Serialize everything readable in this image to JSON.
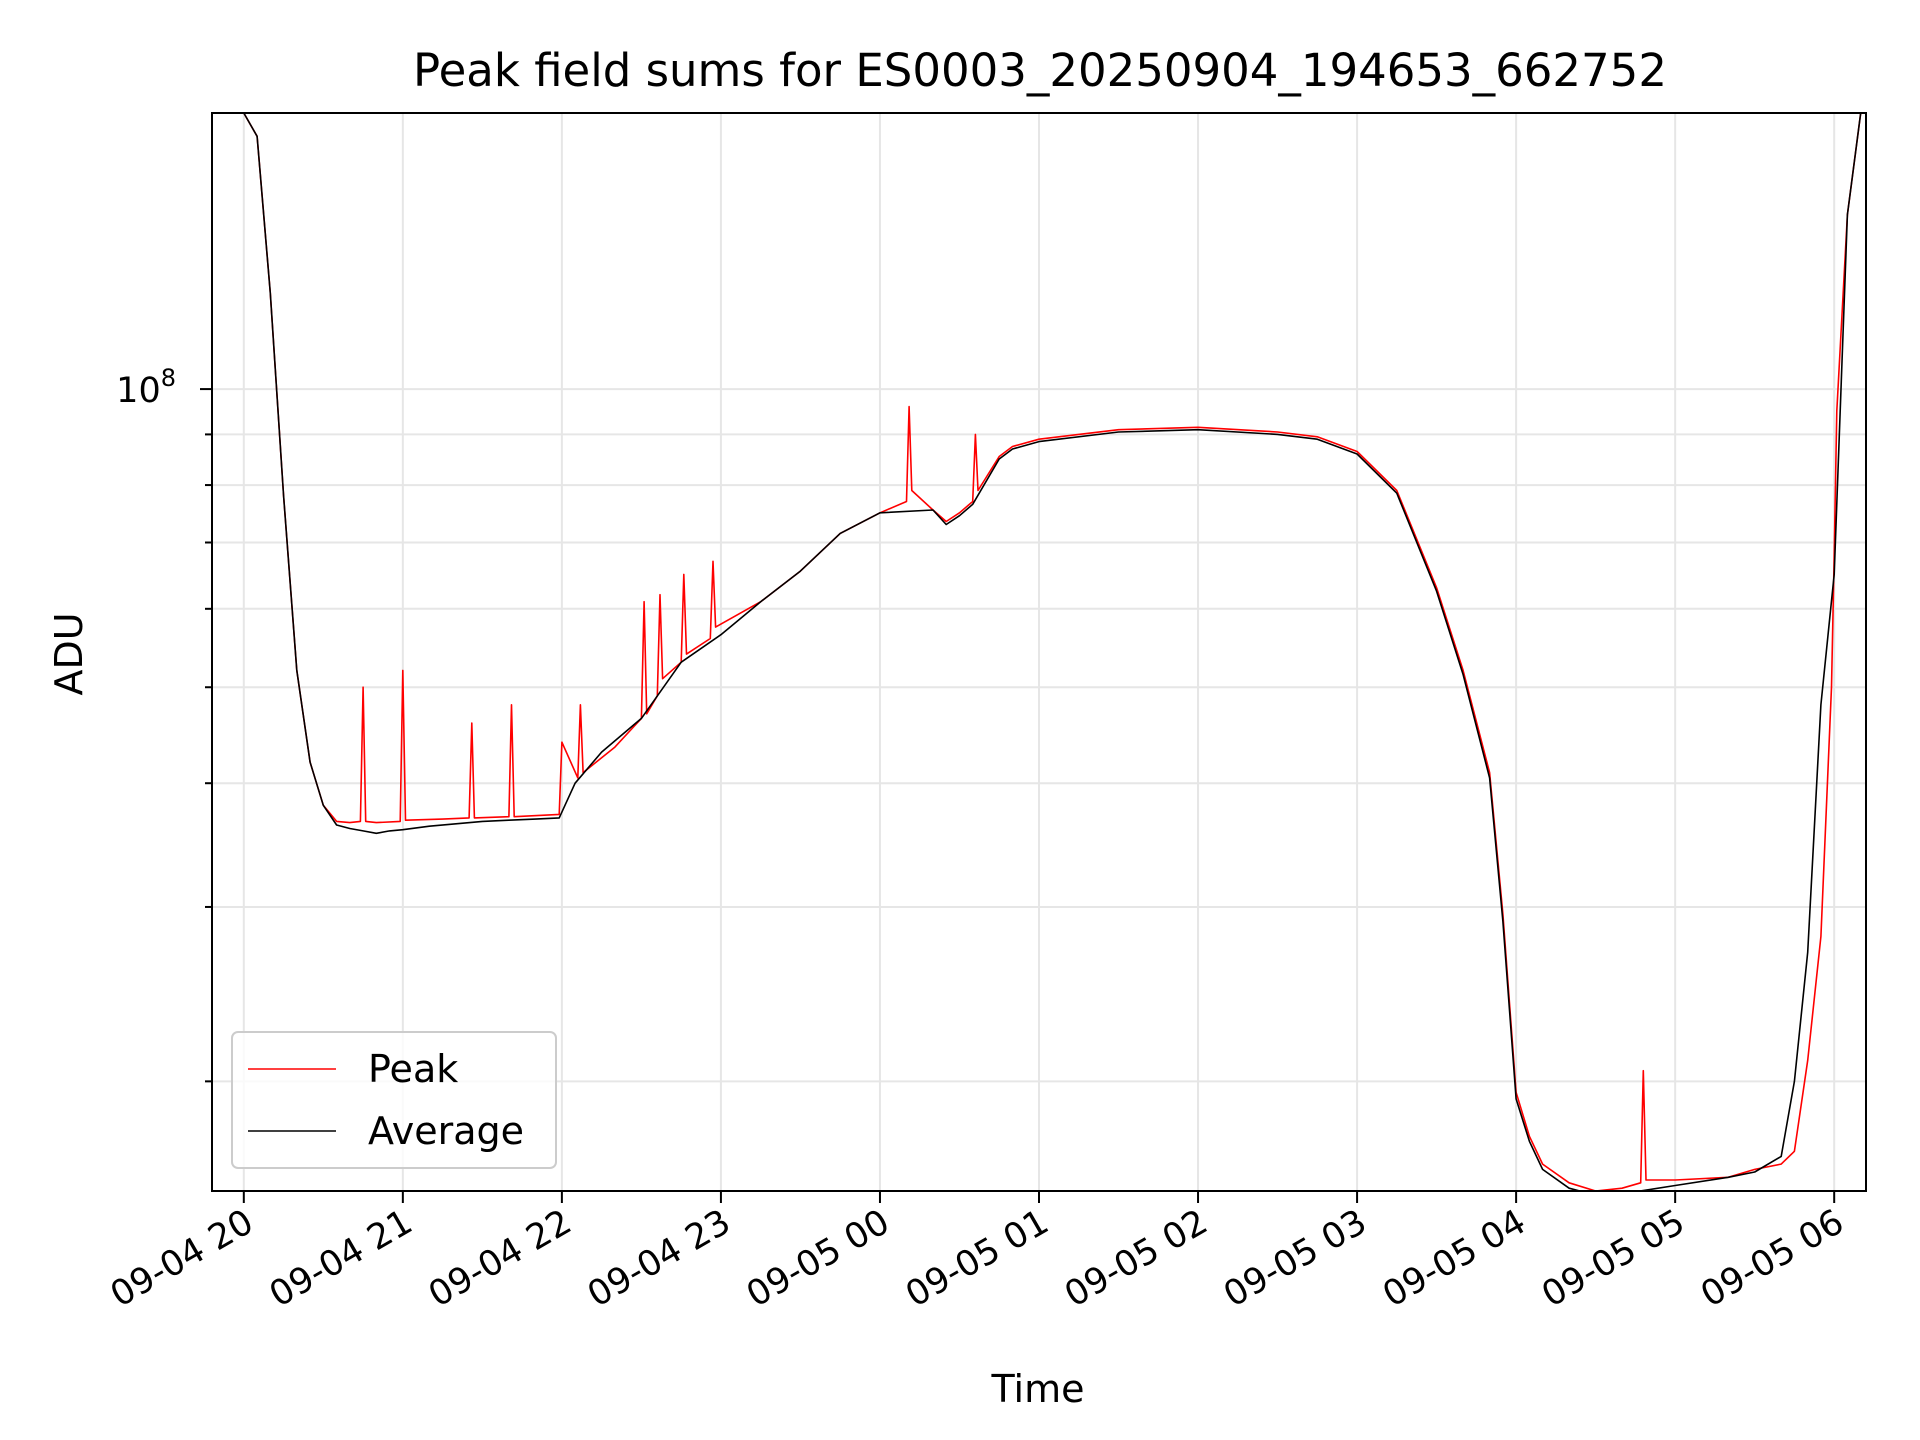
{
  "chart_data": {
    "type": "line",
    "title": "Peak field sums for ES0003_20250904_194653_662752",
    "xlabel": "Time",
    "ylabel": "ADU",
    "y_scale": "log",
    "grid": true,
    "legend_position": "lower-left",
    "x_ticks": [
      "09-04 20",
      "09-04 21",
      "09-04 22",
      "09-04 23",
      "09-05 00",
      "09-05 01",
      "09-05 02",
      "09-05 03",
      "09-05 04",
      "09-05 05",
      "09-05 06"
    ],
    "x_tick_times": [
      "2025-09-04T20:00",
      "2025-09-04T21:00",
      "2025-09-04T22:00",
      "2025-09-04T23:00",
      "2025-09-05T00:00",
      "2025-09-05T01:00",
      "2025-09-05T02:00",
      "2025-09-05T03:00",
      "2025-09-05T04:00",
      "2025-09-05T05:00",
      "2025-09-05T06:00"
    ],
    "xlim": [
      "2025-09-04T19:48",
      "2025-09-05T06:12"
    ],
    "ylim": [
      15500000,
      190000000
    ],
    "y_major_tick": {
      "value": 100000000,
      "base": "10",
      "exponent": "8"
    },
    "y_minor_ticks": [
      20000000,
      30000000,
      40000000,
      50000000,
      60000000,
      70000000,
      80000000,
      90000000,
      200000000
    ],
    "series": [
      {
        "name": "Peak",
        "color": "#ff0000",
        "x": [
          "2025-09-04T20:00",
          "2025-09-04T20:05",
          "2025-09-04T20:10",
          "2025-09-04T20:15",
          "2025-09-04T20:20",
          "2025-09-04T20:25",
          "2025-09-04T20:30",
          "2025-09-04T20:35",
          "2025-09-04T20:40",
          "2025-09-04T20:44",
          "2025-09-04T20:45",
          "2025-09-04T20:46",
          "2025-09-04T20:50",
          "2025-09-04T20:59",
          "2025-09-04T21:00",
          "2025-09-04T21:01",
          "2025-09-04T21:15",
          "2025-09-04T21:25",
          "2025-09-04T21:26",
          "2025-09-04T21:27",
          "2025-09-04T21:40",
          "2025-09-04T21:41",
          "2025-09-04T21:42",
          "2025-09-04T21:59",
          "2025-09-04T22:00",
          "2025-09-04T22:06",
          "2025-09-04T22:07",
          "2025-09-04T22:08",
          "2025-09-04T22:20",
          "2025-09-04T22:30",
          "2025-09-04T22:31",
          "2025-09-04T22:32",
          "2025-09-04T22:36",
          "2025-09-04T22:37",
          "2025-09-04T22:38",
          "2025-09-04T22:45",
          "2025-09-04T22:46",
          "2025-09-04T22:47",
          "2025-09-04T22:56",
          "2025-09-04T22:57",
          "2025-09-04T22:58",
          "2025-09-04T23:15",
          "2025-09-04T23:30",
          "2025-09-04T23:45",
          "2025-09-05T00:00",
          "2025-09-05T00:10",
          "2025-09-05T00:11",
          "2025-09-05T00:12",
          "2025-09-05T00:20",
          "2025-09-05T00:25",
          "2025-09-05T00:30",
          "2025-09-05T00:35",
          "2025-09-05T00:36",
          "2025-09-05T00:37",
          "2025-09-05T00:45",
          "2025-09-05T00:50",
          "2025-09-05T01:00",
          "2025-09-05T01:30",
          "2025-09-05T02:00",
          "2025-09-05T02:30",
          "2025-09-05T02:45",
          "2025-09-05T03:00",
          "2025-09-05T03:15",
          "2025-09-05T03:30",
          "2025-09-05T03:40",
          "2025-09-05T03:50",
          "2025-09-05T03:55",
          "2025-09-05T04:00",
          "2025-09-05T04:05",
          "2025-09-05T04:10",
          "2025-09-05T04:20",
          "2025-09-05T04:30",
          "2025-09-05T04:40",
          "2025-09-05T04:47",
          "2025-09-05T04:48",
          "2025-09-05T04:49",
          "2025-09-05T05:00",
          "2025-09-05T05:20",
          "2025-09-05T05:30",
          "2025-09-05T05:40",
          "2025-09-05T05:45",
          "2025-09-05T05:50",
          "2025-09-05T05:55",
          "2025-09-05T05:59",
          "2025-09-05T06:00",
          "2025-09-05T06:01",
          "2025-09-05T06:05",
          "2025-09-05T06:10"
        ],
        "values": [
          190000000,
          180000000,
          125000000,
          78000000,
          52000000,
          42000000,
          38000000,
          36600000,
          36500000,
          36600000,
          50000000,
          36600000,
          36500000,
          36600000,
          52000000,
          36700000,
          36800000,
          36900000,
          46000000,
          36900000,
          37000000,
          48000000,
          37000000,
          37200000,
          44000000,
          40500000,
          48000000,
          41000000,
          43500000,
          46500000,
          61000000,
          47000000,
          49000000,
          62000000,
          51000000,
          53000000,
          65000000,
          54000000,
          56000000,
          67000000,
          57500000,
          61000000,
          65500000,
          71500000,
          75000000,
          77000000,
          96000000,
          79000000,
          75500000,
          73500000,
          75000000,
          77000000,
          90000000,
          79000000,
          85500000,
          87500000,
          89000000,
          91000000,
          91500000,
          90500000,
          89500000,
          86500000,
          79000000,
          63000000,
          52000000,
          41000000,
          29500000,
          19500000,
          17600000,
          16500000,
          15800000,
          15500000,
          15600000,
          15800000,
          20500000,
          15900000,
          15900000,
          16000000,
          16300000,
          16500000,
          17000000,
          21000000,
          28000000,
          50000000,
          68000000,
          95000000,
          150000000,
          190000000
        ]
      },
      {
        "name": "Average",
        "color": "#000000",
        "x": [
          "2025-09-04T20:00",
          "2025-09-04T20:05",
          "2025-09-04T20:10",
          "2025-09-04T20:15",
          "2025-09-04T20:20",
          "2025-09-04T20:25",
          "2025-09-04T20:30",
          "2025-09-04T20:35",
          "2025-09-04T20:40",
          "2025-09-04T20:45",
          "2025-09-04T20:50",
          "2025-09-04T20:55",
          "2025-09-04T21:00",
          "2025-09-04T21:10",
          "2025-09-04T21:20",
          "2025-09-04T21:30",
          "2025-09-04T21:40",
          "2025-09-04T21:50",
          "2025-09-04T21:59",
          "2025-09-04T22:05",
          "2025-09-04T22:15",
          "2025-09-04T22:30",
          "2025-09-04T22:45",
          "2025-09-04T23:00",
          "2025-09-04T23:15",
          "2025-09-04T23:30",
          "2025-09-04T23:45",
          "2025-09-05T00:00",
          "2025-09-05T00:20",
          "2025-09-05T00:25",
          "2025-09-05T00:30",
          "2025-09-05T00:35",
          "2025-09-05T00:45",
          "2025-09-05T00:50",
          "2025-09-05T01:00",
          "2025-09-05T01:30",
          "2025-09-05T02:00",
          "2025-09-05T02:30",
          "2025-09-05T02:45",
          "2025-09-05T03:00",
          "2025-09-05T03:15",
          "2025-09-05T03:30",
          "2025-09-05T03:40",
          "2025-09-05T03:50",
          "2025-09-05T03:55",
          "2025-09-05T04:00",
          "2025-09-05T04:05",
          "2025-09-05T04:10",
          "2025-09-05T04:20",
          "2025-09-05T04:30",
          "2025-09-05T04:40",
          "2025-09-05T05:00",
          "2025-09-05T05:20",
          "2025-09-05T05:30",
          "2025-09-05T05:40",
          "2025-09-05T05:45",
          "2025-09-05T05:50",
          "2025-09-05T05:55",
          "2025-09-05T06:00",
          "2025-09-05T06:05",
          "2025-09-05T06:10"
        ],
        "values": [
          190000000,
          180000000,
          125000000,
          78000000,
          52000000,
          42000000,
          38000000,
          36300000,
          36000000,
          35800000,
          35600000,
          35800000,
          35900000,
          36200000,
          36400000,
          36600000,
          36700000,
          36800000,
          36900000,
          40000000,
          43000000,
          46500000,
          53000000,
          56500000,
          61000000,
          65500000,
          71500000,
          75000000,
          75500000,
          73000000,
          74500000,
          76500000,
          85000000,
          87000000,
          88500000,
          90500000,
          91000000,
          90000000,
          89000000,
          86000000,
          78500000,
          62500000,
          51500000,
          40500000,
          29000000,
          19200000,
          17400000,
          16300000,
          15600000,
          15350000,
          15400000,
          15700000,
          16000000,
          16200000,
          16800000,
          20000000,
          27000000,
          48000000,
          65000000,
          150000000,
          190000000
        ]
      }
    ]
  }
}
